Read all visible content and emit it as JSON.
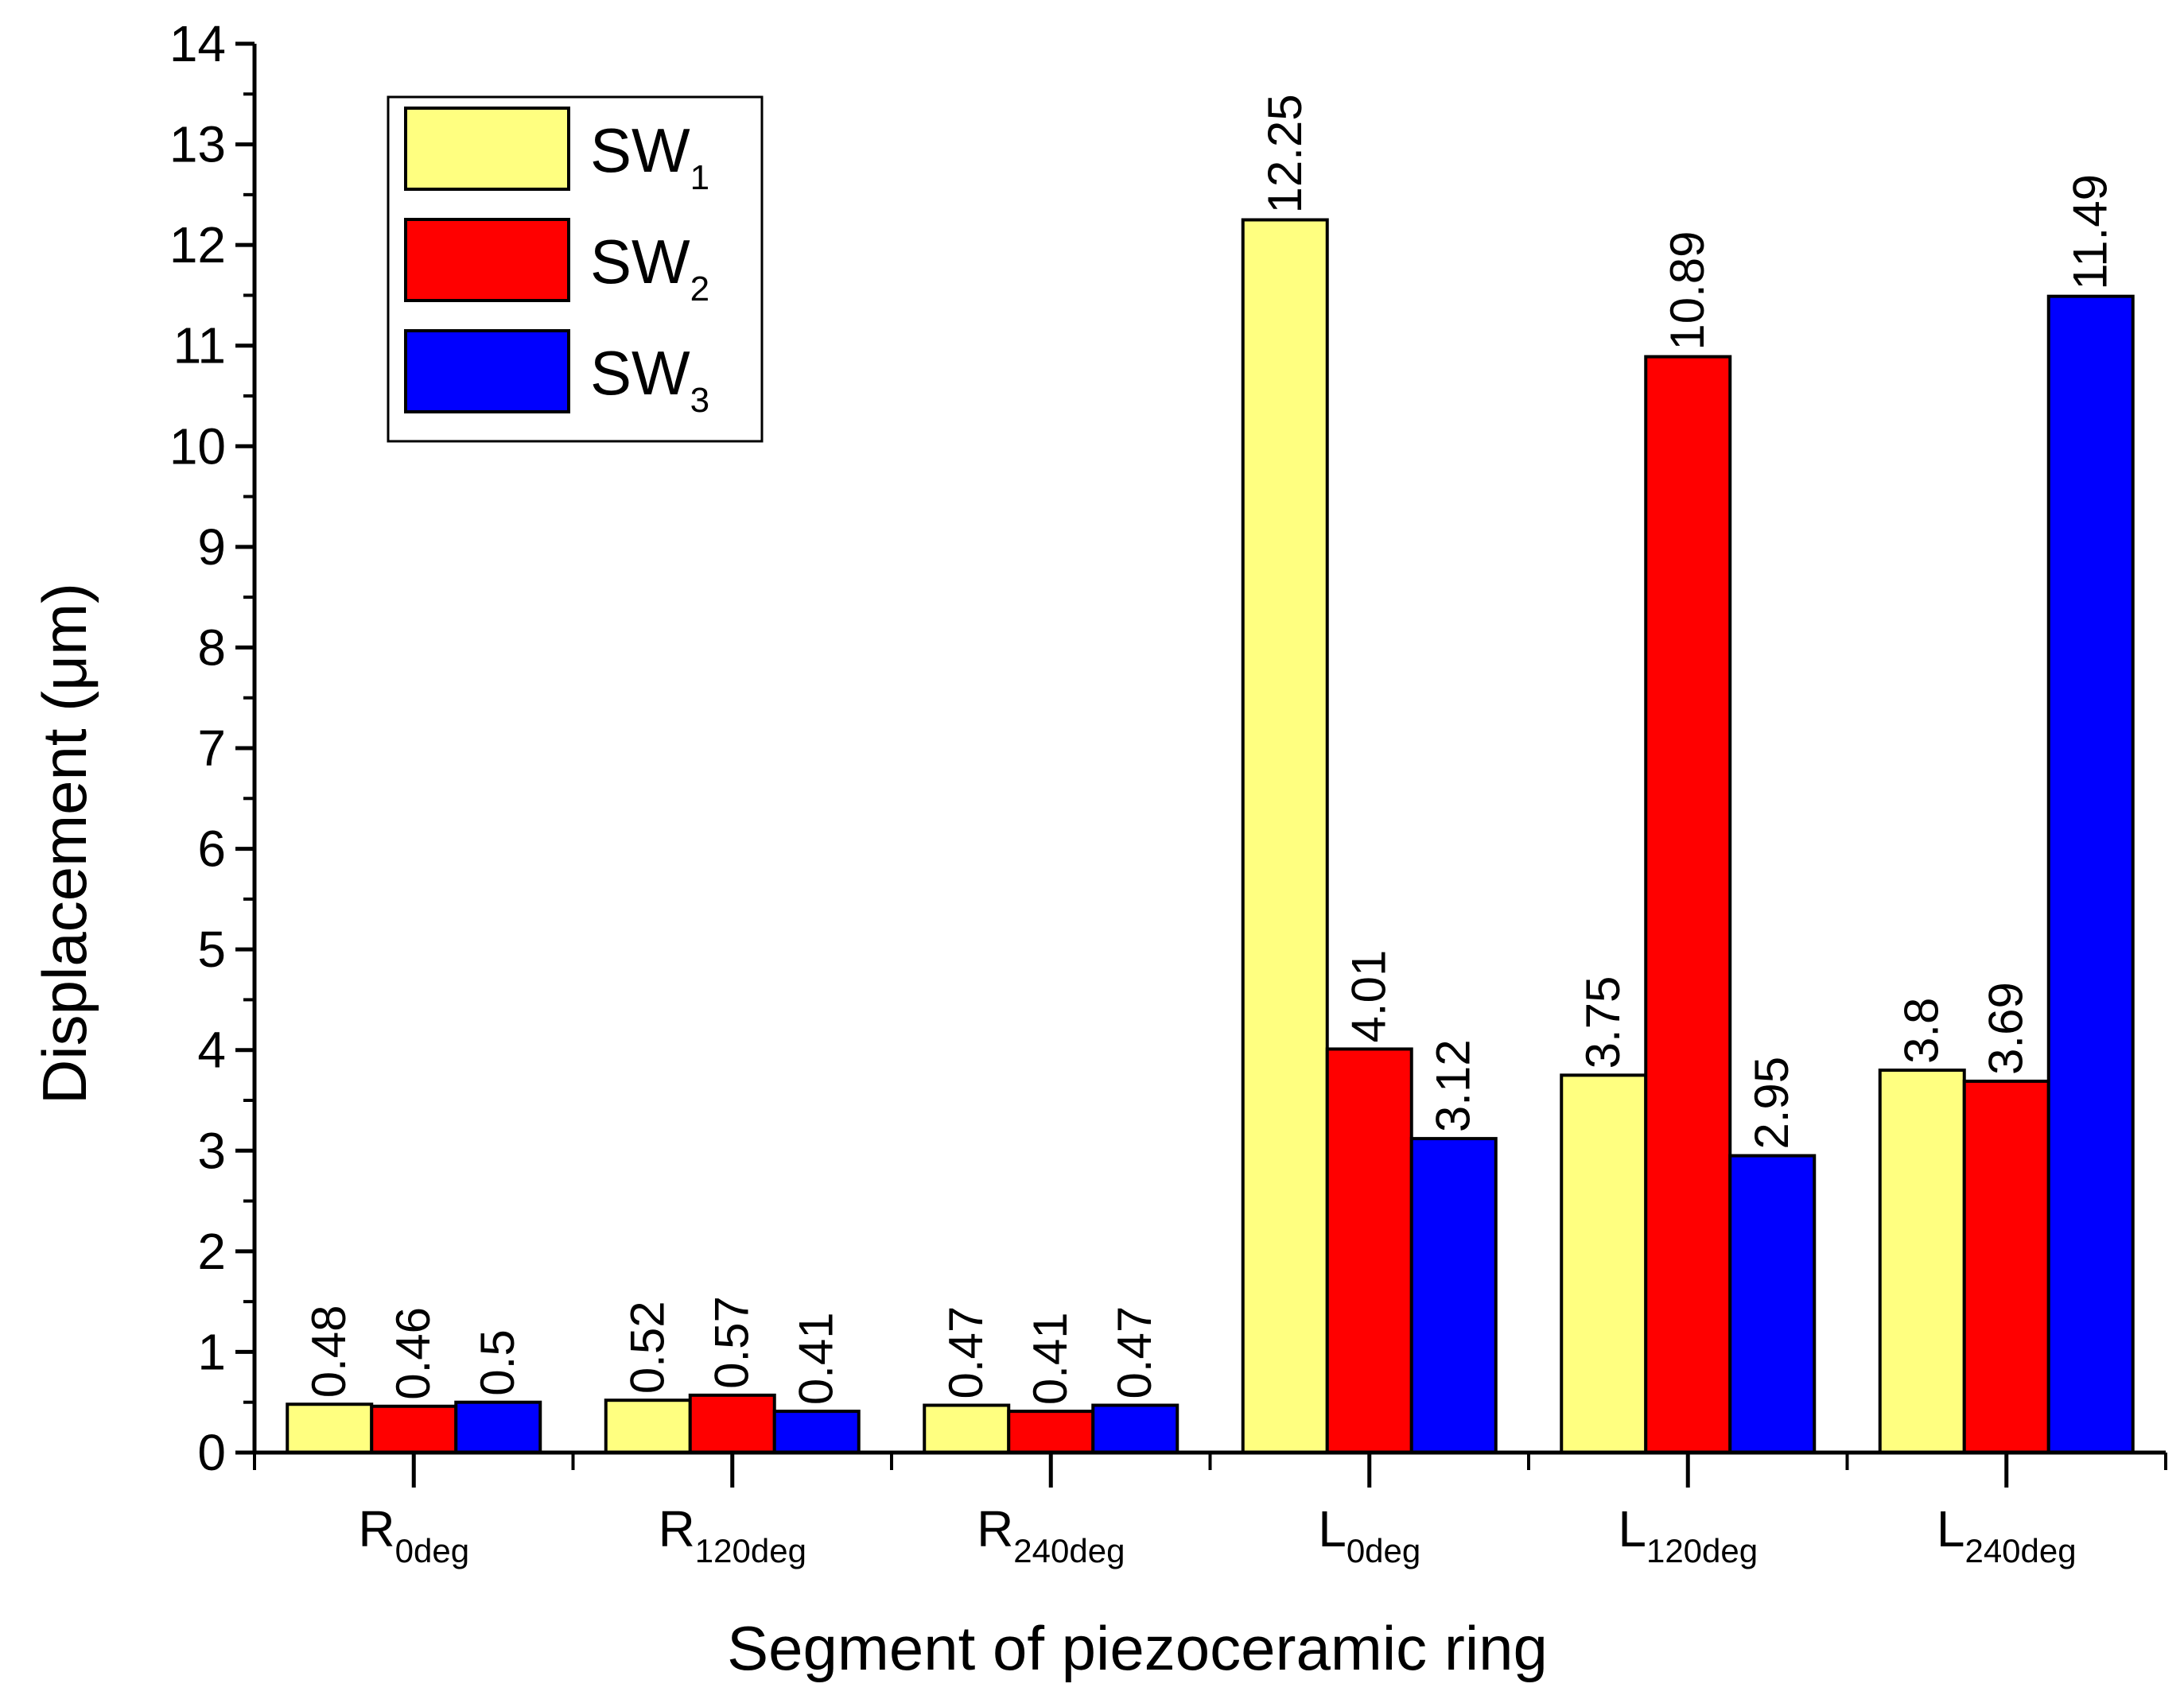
{
  "chart_data": {
    "type": "bar",
    "title": "",
    "xlabel": "Segment of piezoceramic ring",
    "ylabel": "Displacement (μm)",
    "ylim": [
      0,
      14
    ],
    "y_ticks": [
      "0",
      "1",
      "2",
      "3",
      "4",
      "5",
      "6",
      "7",
      "8",
      "9",
      "10",
      "11",
      "12",
      "13",
      "14"
    ],
    "categories": [
      {
        "main": "R",
        "sub": "0deg"
      },
      {
        "main": "R",
        "sub": "120deg"
      },
      {
        "main": "R",
        "sub": "240deg"
      },
      {
        "main": "L",
        "sub": "0deg"
      },
      {
        "main": "L",
        "sub": "120deg"
      },
      {
        "main": "L",
        "sub": "240deg"
      }
    ],
    "series": [
      {
        "name": "SW",
        "sub": "1",
        "color": "#ffff80",
        "values": [
          0.48,
          0.52,
          0.47,
          12.25,
          3.75,
          3.8
        ],
        "labels": [
          "0.48",
          "0.52",
          "0.47",
          "12.25",
          "3.75",
          "3.8"
        ]
      },
      {
        "name": "SW",
        "sub": "2",
        "color": "#ff0000",
        "values": [
          0.46,
          0.57,
          0.41,
          4.01,
          10.89,
          3.69
        ],
        "labels": [
          "0.46",
          "0.57",
          "0.41",
          "4.01",
          "10.89",
          "3.69"
        ]
      },
      {
        "name": "SW",
        "sub": "3",
        "color": "#0000ff",
        "values": [
          0.5,
          0.41,
          0.47,
          3.12,
          2.95,
          11.49
        ],
        "labels": [
          "0.5",
          "0.41",
          "0.47",
          "3.12",
          "2.95",
          "11.49"
        ]
      }
    ],
    "legend_position": "top-left",
    "grid": false
  }
}
